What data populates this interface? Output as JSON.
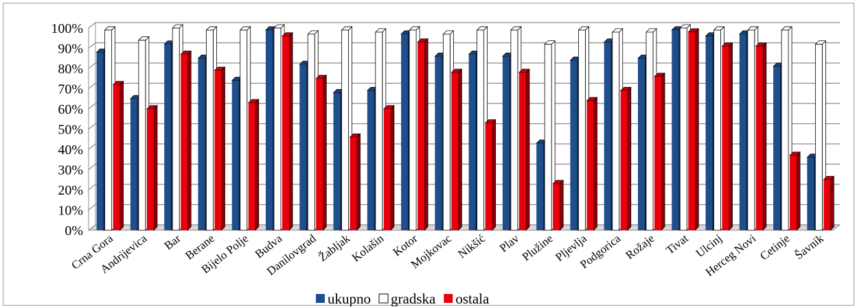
{
  "chart_data": {
    "type": "bar",
    "title": "",
    "xlabel": "",
    "ylabel": "",
    "ylim": [
      0,
      100
    ],
    "y_ticks": [
      "0%",
      "10%",
      "20%",
      "30%",
      "40%",
      "50%",
      "60%",
      "70%",
      "80%",
      "90%",
      "100%"
    ],
    "grid": true,
    "legend_position": "bottom",
    "categories": [
      "Crna Gora",
      "Andrijevica",
      "Bar",
      "Berane",
      "Bijelo Polje",
      "Budva",
      "Danilovgrad",
      "Žabljak",
      "Kolašin",
      "Kotor",
      "Mojkovac",
      "Nikšić",
      "Plav",
      "Plužine",
      "Pljevlja",
      "Podgorica",
      "Rožaje",
      "Tivat",
      "Ulcinj",
      "Herceg Novi",
      "Cetinje",
      "Šavnik"
    ],
    "series": [
      {
        "name": "ukupno",
        "color": "#1f4e8c",
        "values": [
          88,
          65,
          92,
          85,
          74,
          99,
          82,
          68,
          69,
          97,
          86,
          87,
          86,
          43,
          84,
          93,
          85,
          99,
          96,
          97,
          81,
          36
        ]
      },
      {
        "name": "gradska",
        "color": "#ffffff",
        "values": [
          99,
          94,
          100,
          99,
          99,
          100,
          97,
          99,
          98,
          99,
          97,
          99,
          99,
          92,
          99,
          98,
          98,
          100,
          99,
          99,
          99,
          92
        ]
      },
      {
        "name": "ostala",
        "color": "#e8000b",
        "values": [
          72,
          60,
          87,
          79,
          63,
          96,
          75,
          46,
          60,
          93,
          78,
          53,
          78,
          23,
          64,
          69,
          76,
          98,
          91,
          91,
          37,
          25
        ]
      }
    ]
  }
}
